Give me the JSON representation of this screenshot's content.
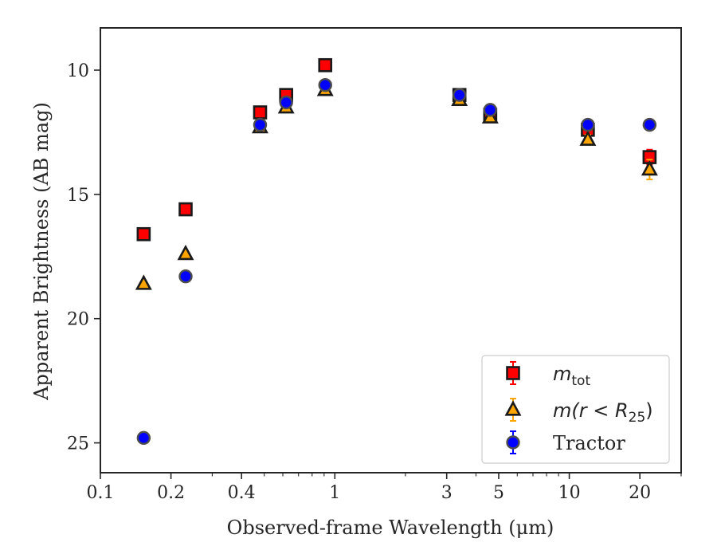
{
  "chart_data": {
    "type": "scatter",
    "title": "",
    "xlabel": "Observed-frame Wavelength (μm)",
    "ylabel": "Apparent Brightness (AB mag)",
    "xscale": "log",
    "xlim": [
      0.1,
      30
    ],
    "ylim": [
      26.2,
      8.3
    ],
    "y_inverted": true,
    "grid": false,
    "legend_position": "lower-right",
    "x_ticks": [
      {
        "value": 0.1,
        "label": "0.1"
      },
      {
        "value": 0.2,
        "label": "0.2"
      },
      {
        "value": 0.4,
        "label": "0.4"
      },
      {
        "value": 1,
        "label": "1"
      },
      {
        "value": 3,
        "label": "3"
      },
      {
        "value": 5,
        "label": "5"
      },
      {
        "value": 10,
        "label": "10"
      },
      {
        "value": 20,
        "label": "20"
      }
    ],
    "y_ticks": [
      {
        "value": 10,
        "label": "10"
      },
      {
        "value": 15,
        "label": "15"
      },
      {
        "value": 20,
        "label": "20"
      },
      {
        "value": 25,
        "label": "25"
      }
    ],
    "series": [
      {
        "name": "m_tot",
        "legend_main": "m",
        "legend_sub": "tot",
        "marker": "square",
        "color": "#ff0000",
        "errorbar_color": "#ff0000",
        "edge_color": "#1a1a1a",
        "x": [
          0.153,
          0.231,
          0.48,
          0.62,
          0.91,
          3.4,
          4.6,
          12.0,
          22.0
        ],
        "y": [
          16.6,
          15.6,
          11.7,
          11.0,
          9.8,
          11.0,
          11.8,
          12.4,
          13.5
        ],
        "yerr": [
          0.1,
          0.1,
          0.1,
          0.1,
          0.1,
          0.1,
          0.15,
          0.2,
          0.3
        ]
      },
      {
        "name": "m(r < R25)",
        "legend_main": "m(r < R",
        "legend_sub": "25",
        "legend_close": ")",
        "marker": "triangle",
        "color": "#ffa500",
        "errorbar_color": "#ffa500",
        "edge_color": "#1a1a1a",
        "x": [
          0.153,
          0.231,
          0.48,
          0.62,
          0.91,
          3.4,
          4.6,
          12.0,
          22.0
        ],
        "y": [
          18.6,
          17.4,
          12.3,
          11.5,
          10.8,
          11.2,
          11.9,
          12.8,
          14.0
        ],
        "yerr": [
          0.1,
          0.1,
          0.1,
          0.1,
          0.1,
          0.1,
          0.15,
          0.2,
          0.4
        ]
      },
      {
        "name": "Tractor",
        "legend_main": "Tractor",
        "marker": "circle",
        "color": "#0000ff",
        "errorbar_color": "#0000ff",
        "edge_color": "#4d4d4d",
        "x": [
          0.153,
          0.231,
          0.48,
          0.62,
          0.91,
          3.4,
          4.6,
          12.0,
          22.0
        ],
        "y": [
          24.8,
          18.3,
          12.2,
          11.3,
          10.6,
          11.0,
          11.6,
          12.2,
          12.2
        ],
        "yerr": [
          0.1,
          0.1,
          0.1,
          0.1,
          0.1,
          0.1,
          0.1,
          0.1,
          0.1
        ]
      }
    ]
  }
}
